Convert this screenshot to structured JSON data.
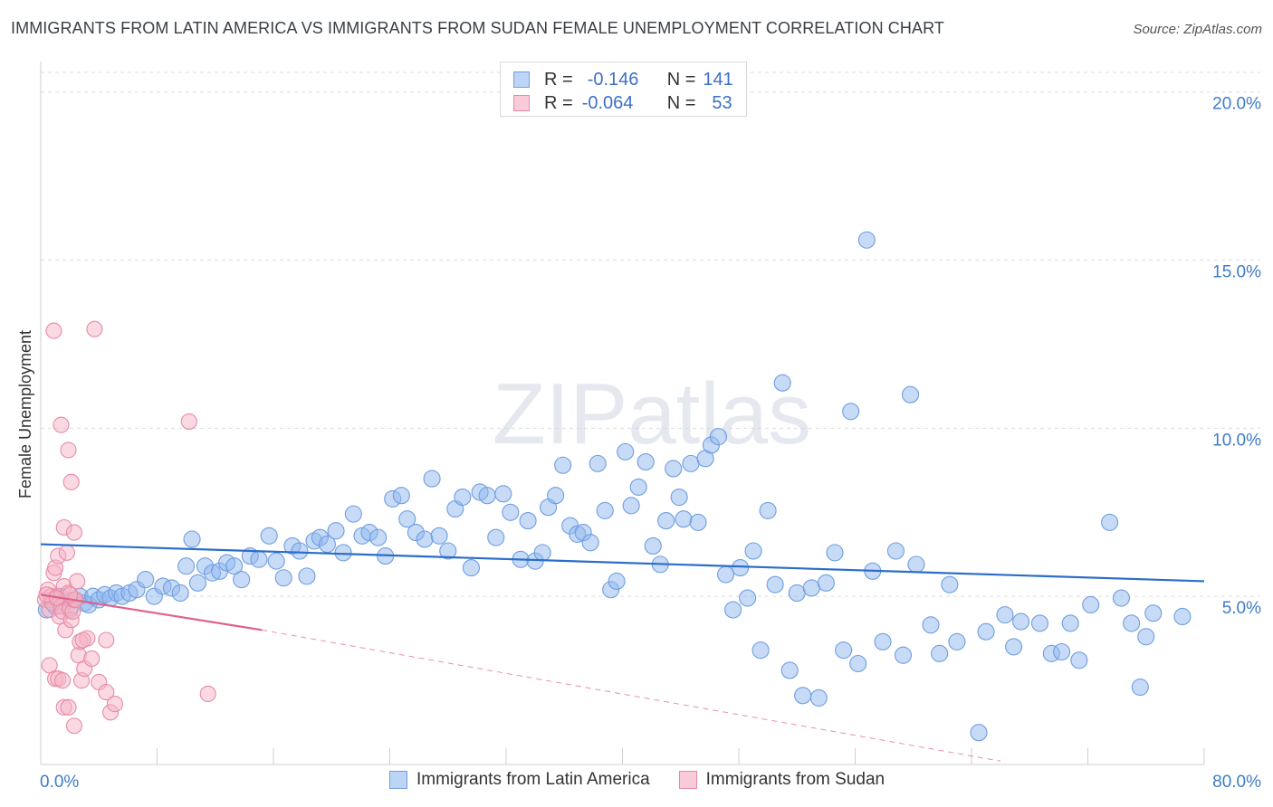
{
  "title": "IMMIGRANTS FROM LATIN AMERICA VS IMMIGRANTS FROM SUDAN FEMALE UNEMPLOYMENT CORRELATION CHART",
  "source": "Source: ZipAtlas.com",
  "watermark": "ZIPatlas",
  "legend_top": {
    "rows": [
      {
        "r_label": "R =",
        "r_value": "-0.146",
        "n_label": "N =",
        "n_value": "141",
        "color": "#8fb8ef",
        "border": "#6f9ee0"
      },
      {
        "r_label": "R =",
        "r_value": "-0.064",
        "n_label": "N =",
        "n_value": "53",
        "color": "#f6b3c6",
        "border": "#e88aa6"
      }
    ]
  },
  "chart_data": {
    "type": "scatter",
    "title": "IMMIGRANTS FROM LATIN AMERICA VS IMMIGRANTS FROM SUDAN FEMALE UNEMPLOYMENT CORRELATION CHART",
    "xlabel": "",
    "ylabel": "Female Unemployment",
    "xlim": [
      0,
      80
    ],
    "ylim": [
      0,
      20.8
    ],
    "x_tick_labels": [
      "0.0%",
      "80.0%"
    ],
    "y_ticks": [
      5,
      10,
      15,
      20
    ],
    "y_tick_labels": [
      "5.0%",
      "10.0%",
      "15.0%",
      "20.0%"
    ],
    "grid": true,
    "legend_position": "bottom",
    "series": [
      {
        "name": "Immigrants from Latin America",
        "color": "#8fb8ef",
        "edge": "#6f9ee0",
        "trend": {
          "x0": 0,
          "y0": 6.55,
          "x1": 80,
          "y1": 5.45,
          "color": "#2b6dc9"
        },
        "points": [
          [
            0.4,
            4.6
          ],
          [
            0.8,
            4.9
          ],
          [
            1.0,
            4.7
          ],
          [
            1.3,
            5.0
          ],
          [
            1.6,
            4.8
          ],
          [
            2.0,
            4.6
          ],
          [
            2.3,
            4.9
          ],
          [
            2.7,
            5.0
          ],
          [
            3.0,
            4.8
          ],
          [
            3.3,
            4.75
          ],
          [
            3.6,
            5.0
          ],
          [
            4.0,
            4.9
          ],
          [
            4.4,
            5.05
          ],
          [
            4.8,
            4.95
          ],
          [
            5.2,
            5.1
          ],
          [
            5.6,
            5.0
          ],
          [
            6.1,
            5.1
          ],
          [
            6.6,
            5.2
          ],
          [
            7.2,
            5.5
          ],
          [
            7.8,
            5.0
          ],
          [
            8.4,
            5.3
          ],
          [
            9.0,
            5.25
          ],
          [
            9.6,
            5.1
          ],
          [
            10.0,
            5.9
          ],
          [
            10.4,
            6.7
          ],
          [
            10.8,
            5.4
          ],
          [
            11.3,
            5.9
          ],
          [
            11.8,
            5.7
          ],
          [
            12.3,
            5.75
          ],
          [
            12.8,
            6.0
          ],
          [
            13.3,
            5.9
          ],
          [
            13.8,
            5.5
          ],
          [
            14.4,
            6.2
          ],
          [
            15.0,
            6.1
          ],
          [
            15.7,
            6.8
          ],
          [
            16.2,
            6.05
          ],
          [
            16.7,
            5.55
          ],
          [
            17.3,
            6.5
          ],
          [
            17.8,
            6.35
          ],
          [
            18.3,
            5.6
          ],
          [
            18.8,
            6.65
          ],
          [
            19.2,
            6.75
          ],
          [
            19.7,
            6.55
          ],
          [
            20.3,
            6.95
          ],
          [
            20.8,
            6.3
          ],
          [
            21.5,
            7.45
          ],
          [
            22.1,
            6.8
          ],
          [
            22.6,
            6.9
          ],
          [
            23.2,
            6.75
          ],
          [
            23.7,
            6.2
          ],
          [
            24.2,
            7.9
          ],
          [
            24.8,
            8.0
          ],
          [
            25.2,
            7.3
          ],
          [
            25.8,
            6.9
          ],
          [
            26.4,
            6.7
          ],
          [
            26.9,
            8.5
          ],
          [
            27.4,
            6.8
          ],
          [
            28.0,
            6.35
          ],
          [
            28.5,
            7.6
          ],
          [
            29.0,
            7.95
          ],
          [
            29.6,
            5.85
          ],
          [
            30.2,
            8.1
          ],
          [
            30.7,
            8.0
          ],
          [
            31.3,
            6.75
          ],
          [
            31.8,
            8.05
          ],
          [
            32.3,
            7.5
          ],
          [
            33.0,
            6.1
          ],
          [
            33.5,
            7.25
          ],
          [
            34.0,
            6.05
          ],
          [
            34.5,
            6.3
          ],
          [
            34.9,
            7.65
          ],
          [
            35.4,
            8.0
          ],
          [
            35.9,
            8.9
          ],
          [
            36.4,
            7.1
          ],
          [
            36.9,
            6.85
          ],
          [
            37.3,
            6.9
          ],
          [
            37.8,
            6.6
          ],
          [
            38.3,
            8.95
          ],
          [
            38.8,
            7.55
          ],
          [
            39.2,
            5.2
          ],
          [
            39.6,
            5.45
          ],
          [
            40.2,
            9.3
          ],
          [
            40.6,
            7.7
          ],
          [
            41.1,
            8.25
          ],
          [
            41.6,
            9.0
          ],
          [
            42.1,
            6.5
          ],
          [
            42.6,
            5.95
          ],
          [
            43.0,
            7.25
          ],
          [
            43.5,
            8.8
          ],
          [
            43.9,
            7.95
          ],
          [
            44.2,
            7.3
          ],
          [
            44.7,
            8.95
          ],
          [
            45.2,
            7.2
          ],
          [
            45.7,
            9.1
          ],
          [
            46.1,
            9.5
          ],
          [
            46.6,
            9.75
          ],
          [
            47.1,
            5.65
          ],
          [
            47.6,
            4.6
          ],
          [
            48.1,
            5.85
          ],
          [
            48.6,
            4.95
          ],
          [
            49.0,
            6.35
          ],
          [
            49.5,
            3.4
          ],
          [
            50.0,
            7.55
          ],
          [
            50.5,
            5.35
          ],
          [
            51.0,
            11.35
          ],
          [
            51.5,
            2.8
          ],
          [
            52.0,
            5.1
          ],
          [
            52.4,
            2.05
          ],
          [
            53.0,
            5.25
          ],
          [
            53.5,
            1.98
          ],
          [
            54.0,
            5.4
          ],
          [
            54.6,
            6.3
          ],
          [
            55.2,
            3.4
          ],
          [
            55.7,
            10.5
          ],
          [
            56.2,
            3.0
          ],
          [
            56.8,
            15.6
          ],
          [
            57.2,
            5.75
          ],
          [
            57.9,
            3.65
          ],
          [
            58.8,
            6.35
          ],
          [
            59.3,
            3.25
          ],
          [
            59.8,
            11.0
          ],
          [
            60.2,
            5.95
          ],
          [
            61.2,
            4.15
          ],
          [
            61.8,
            3.3
          ],
          [
            62.5,
            5.35
          ],
          [
            63.0,
            3.65
          ],
          [
            64.5,
            0.95
          ],
          [
            65.0,
            3.95
          ],
          [
            66.3,
            4.45
          ],
          [
            66.9,
            3.5
          ],
          [
            67.4,
            4.25
          ],
          [
            68.7,
            4.2
          ],
          [
            69.5,
            3.3
          ],
          [
            70.2,
            3.35
          ],
          [
            70.8,
            4.2
          ],
          [
            71.4,
            3.1
          ],
          [
            72.2,
            4.75
          ],
          [
            73.5,
            7.2
          ],
          [
            74.3,
            4.95
          ],
          [
            75.0,
            4.2
          ],
          [
            75.6,
            2.3
          ],
          [
            76.0,
            3.8
          ],
          [
            76.5,
            4.5
          ],
          [
            78.5,
            4.4
          ]
        ]
      },
      {
        "name": "Immigrants from Sudan",
        "color": "#f6b3c6",
        "edge": "#e88aa6",
        "trend": {
          "x0": 0,
          "y0": 5.05,
          "x1": 15.2,
          "y1": 4.0,
          "color": "#e0608a"
        },
        "trend_extended": {
          "x0": 15.2,
          "y0": 4.0,
          "x1": 66,
          "y1": 0.1
        },
        "points": [
          [
            0.3,
            4.9
          ],
          [
            0.5,
            5.2
          ],
          [
            0.6,
            4.6
          ],
          [
            0.7,
            5.0
          ],
          [
            0.8,
            4.8
          ],
          [
            0.9,
            5.7
          ],
          [
            1.0,
            5.85
          ],
          [
            1.1,
            5.0
          ],
          [
            1.2,
            6.2
          ],
          [
            1.3,
            4.4
          ],
          [
            1.4,
            4.7
          ],
          [
            1.5,
            4.55
          ],
          [
            1.6,
            5.3
          ],
          [
            1.7,
            4.0
          ],
          [
            1.8,
            6.3
          ],
          [
            1.9,
            5.1
          ],
          [
            2.0,
            4.65
          ],
          [
            2.1,
            4.3
          ],
          [
            2.2,
            4.55
          ],
          [
            2.3,
            4.9
          ],
          [
            2.4,
            4.9
          ],
          [
            2.5,
            5.45
          ],
          [
            2.6,
            3.25
          ],
          [
            2.7,
            3.65
          ],
          [
            2.8,
            2.5
          ],
          [
            3.0,
            2.85
          ],
          [
            3.2,
            3.75
          ],
          [
            3.5,
            3.15
          ],
          [
            4.0,
            2.45
          ],
          [
            4.5,
            2.15
          ],
          [
            4.8,
            1.55
          ],
          [
            5.1,
            1.8
          ],
          [
            0.9,
            12.9
          ],
          [
            1.4,
            10.1
          ],
          [
            1.6,
            7.05
          ],
          [
            1.9,
            9.35
          ],
          [
            2.1,
            8.4
          ],
          [
            2.3,
            6.9
          ],
          [
            0.6,
            2.95
          ],
          [
            1.0,
            2.55
          ],
          [
            1.2,
            2.55
          ],
          [
            1.5,
            2.5
          ],
          [
            1.6,
            1.7
          ],
          [
            1.9,
            1.7
          ],
          [
            2.3,
            1.15
          ],
          [
            2.9,
            3.7
          ],
          [
            3.7,
            12.95
          ],
          [
            4.5,
            3.7
          ],
          [
            10.2,
            10.2
          ],
          [
            11.5,
            2.1
          ],
          [
            0.4,
            5.05
          ],
          [
            2.0,
            5.05
          ],
          [
            1.1,
            4.95
          ]
        ]
      }
    ]
  }
}
